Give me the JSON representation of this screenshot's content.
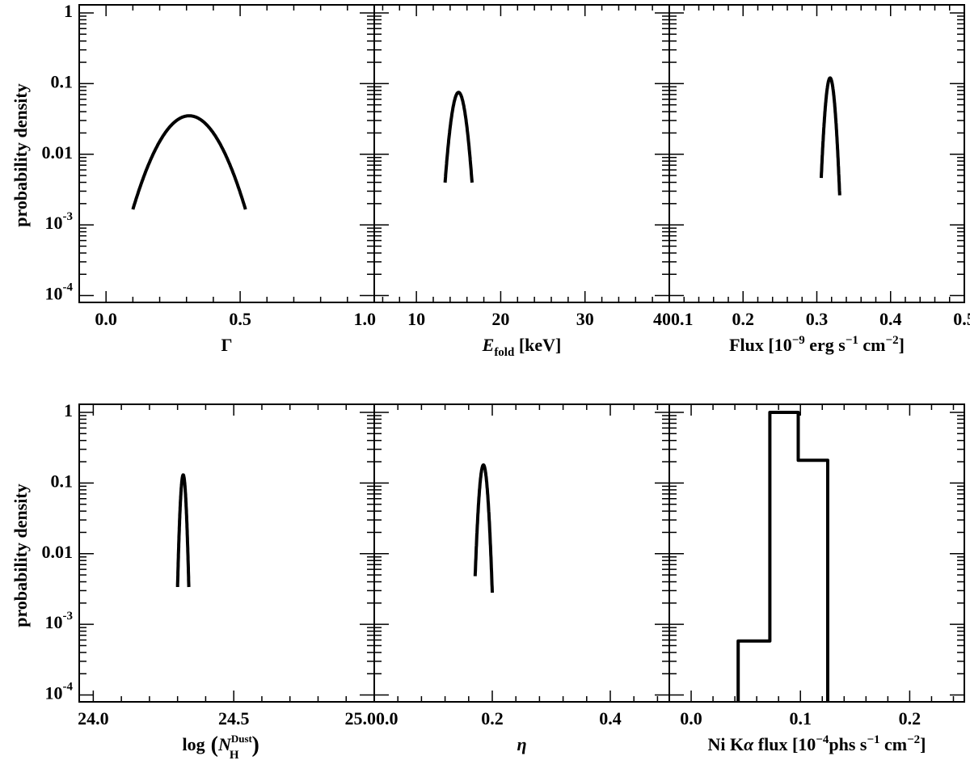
{
  "figure": {
    "ylabel": "probability density"
  },
  "chart_data": [
    {
      "type": "line",
      "panel": "gamma",
      "xlabel_parts": [
        "Γ"
      ],
      "x_ticks": [
        0.0,
        0.5,
        1.0
      ],
      "x_tick_labels": [
        "0.0",
        "0.5",
        "1.0"
      ],
      "xlim": [
        -0.1,
        1.0
      ],
      "y_scale": "log",
      "ylim": [
        8e-05,
        1.3
      ],
      "y_tick_labels": [
        "1",
        "0.1",
        "0.01",
        "10-3",
        "10-4"
      ],
      "series": [
        {
          "gaussian": {
            "mu": 0.31,
            "sigma": 0.085,
            "peak": 0.035,
            "xmin": 0.1,
            "xmax": 0.52
          }
        }
      ]
    },
    {
      "type": "line",
      "panel": "efold",
      "xlabel_parts": [
        "E",
        "fold",
        "[keV]"
      ],
      "x_ticks": [
        10,
        20,
        30,
        40
      ],
      "x_tick_labels": [
        "10",
        "20",
        "30",
        "40"
      ],
      "xlim": [
        5,
        40
      ],
      "y_scale": "log",
      "ylim": [
        8e-05,
        1.3
      ],
      "series": [
        {
          "gaussian": {
            "mu": 15.0,
            "sigma": 0.66,
            "peak": 0.075,
            "xmin": 13.4,
            "xmax": 16.6
          }
        }
      ]
    },
    {
      "type": "line",
      "panel": "flux",
      "xlabel_parts": [
        "Flux [10",
        "−9",
        " erg s",
        "−1",
        " cm",
        "−2",
        "]"
      ],
      "x_ticks": [
        0.1,
        0.2,
        0.3,
        0.4,
        0.5
      ],
      "x_tick_labels": [
        "0.1",
        "0.2",
        "0.3",
        "0.4",
        "0.5"
      ],
      "xlim": [
        0.1,
        0.5
      ],
      "y_scale": "log",
      "ylim": [
        8e-05,
        1.3
      ],
      "series": [
        {
          "gaussian": {
            "mu": 0.318,
            "sigma": 0.0047,
            "peak": 0.12,
            "xmin": 0.306,
            "xmax": 0.331
          }
        }
      ]
    },
    {
      "type": "line",
      "panel": "nh",
      "xlabel_parts": [
        "log",
        "N",
        "Dust",
        "H"
      ],
      "x_ticks": [
        24.0,
        24.5,
        25.0
      ],
      "x_tick_labels": [
        "24.0",
        "24.5",
        "25.0"
      ],
      "xlim": [
        23.95,
        25.0
      ],
      "y_scale": "log",
      "ylim": [
        8e-05,
        1.3
      ],
      "y_tick_labels": [
        "1",
        "0.1",
        "0.01",
        "10-3",
        "10-4"
      ],
      "series": [
        {
          "gaussian": {
            "mu": 24.32,
            "sigma": 0.0074,
            "peak": 0.13,
            "xmin": 24.3,
            "xmax": 24.34
          }
        }
      ]
    },
    {
      "type": "line",
      "panel": "eta",
      "xlabel_parts": [
        "η"
      ],
      "x_ticks": [
        0.0,
        0.2,
        0.4
      ],
      "x_tick_labels": [
        "0.0",
        "0.2",
        "0.4"
      ],
      "xlim": [
        0.0,
        0.5
      ],
      "y_scale": "log",
      "ylim": [
        8e-05,
        1.3
      ],
      "series": [
        {
          "gaussian": {
            "mu": 0.185,
            "sigma": 0.0052,
            "peak": 0.18,
            "xmin": 0.171,
            "xmax": 0.2
          }
        }
      ]
    },
    {
      "type": "line",
      "panel": "ni",
      "xlabel_parts": [
        "Ni K",
        "α",
        " flux [10",
        "−4",
        "phs s",
        "−1",
        " cm",
        "−2",
        "]"
      ],
      "x_ticks": [
        0.0,
        0.1,
        0.2
      ],
      "x_tick_labels": [
        "0.0",
        "0.1",
        "0.2"
      ],
      "xlim": [
        -0.02,
        0.25
      ],
      "y_scale": "log",
      "ylim": [
        8e-05,
        1.3
      ],
      "series": [
        {
          "step": {
            "edges": [
              0.043,
              0.072,
              0.098,
              0.125
            ],
            "values": [
              0.00058,
              1.0,
              0.21
            ]
          }
        }
      ]
    }
  ]
}
